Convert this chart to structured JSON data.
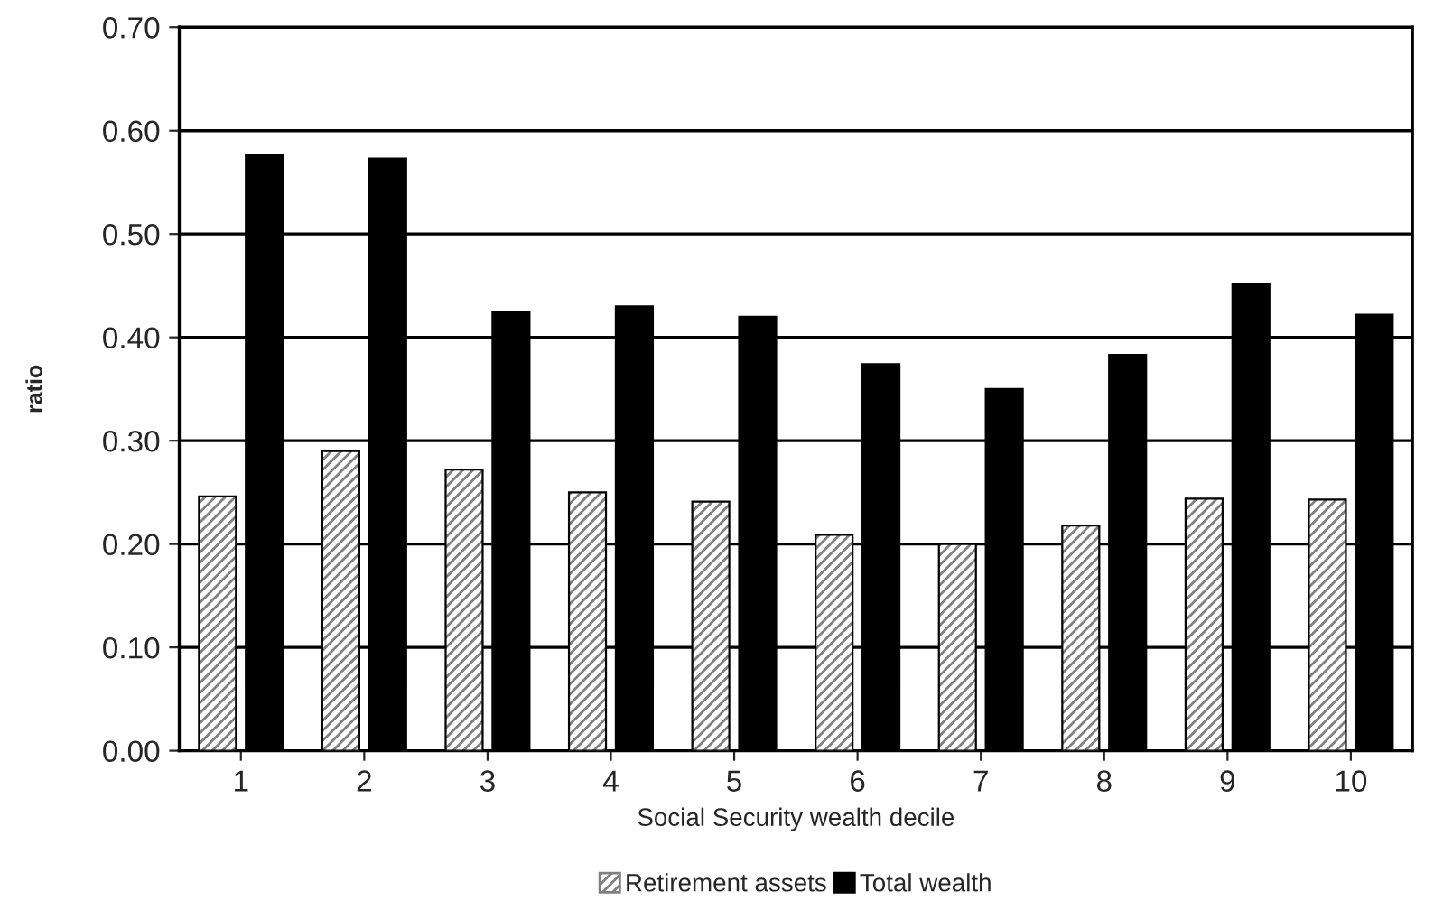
{
  "chart_data": {
    "type": "bar",
    "xlabel": "Social Security wealth decile",
    "ylabel": "ratio",
    "categories": [
      "1",
      "2",
      "3",
      "4",
      "5",
      "6",
      "7",
      "8",
      "9",
      "10"
    ],
    "series": [
      {
        "name": "Retirement assets",
        "color": "#808080",
        "values": [
          0.246,
          0.29,
          0.272,
          0.25,
          0.241,
          0.209,
          0.2,
          0.218,
          0.244,
          0.243
        ]
      },
      {
        "name": "Total wealth",
        "color": "#000000",
        "values": [
          0.576,
          0.573,
          0.424,
          0.43,
          0.42,
          0.374,
          0.35,
          0.383,
          0.452,
          0.422
        ]
      }
    ],
    "ylim": [
      0,
      0.7
    ],
    "yticks": [
      {
        "value": 0,
        "label": "0.00"
      },
      {
        "value": 0.1,
        "label": "0.10"
      },
      {
        "value": 0.2,
        "label": "0.20"
      },
      {
        "value": 0.3,
        "label": "0.30"
      },
      {
        "value": 0.4,
        "label": "0.40"
      },
      {
        "value": 0.5,
        "label": "0.50"
      },
      {
        "value": 0.6,
        "label": "0.60"
      },
      {
        "value": 0.7,
        "label": "0.70"
      }
    ],
    "grid": "y",
    "legend": "bottom"
  }
}
